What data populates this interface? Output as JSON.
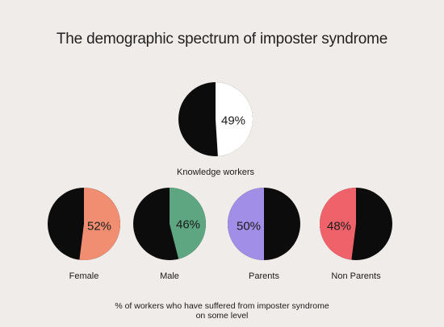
{
  "chart_data": {
    "type": "pie",
    "title": "The demographic spectrum of imposter syndrome",
    "footnote_line1": "% of workers who have suffered from imposter syndrome",
    "footnote_line2": "on some level",
    "remainder_color": "#0d0c0d",
    "pies": [
      {
        "label": "Knowledge workers",
        "value": 49,
        "value_label": "49%",
        "color": "#ffffff"
      },
      {
        "label": "Female",
        "value": 52,
        "value_label": "52%",
        "color": "#f18e72"
      },
      {
        "label": "Male",
        "value": 46,
        "value_label": "46%",
        "color": "#5ea581"
      },
      {
        "label": "Parents",
        "value": 50,
        "value_label": "50%",
        "color": "#a18ee6"
      },
      {
        "label": "Non Parents",
        "value": 48,
        "value_label": "48%",
        "color": "#ef6269"
      }
    ]
  }
}
